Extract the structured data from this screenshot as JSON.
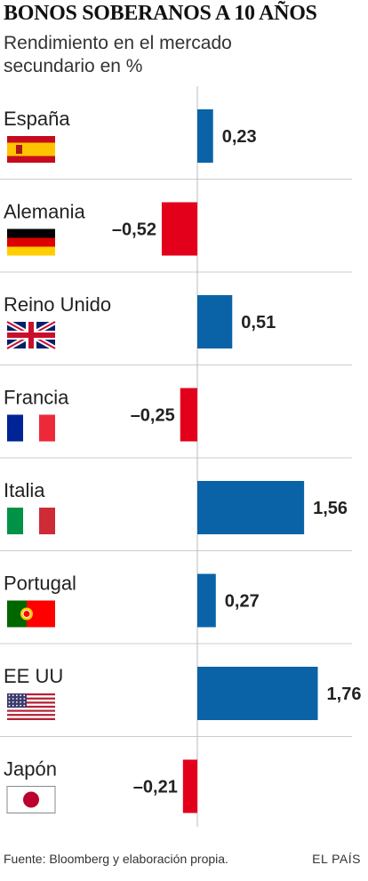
{
  "header": {
    "title": "BONOS SOBERANOS A 10 AÑOS",
    "subtitle": "Rendimiento en el mercado secundario en %"
  },
  "footer": {
    "source": "Fuente: Bloomberg y elaboración propia.",
    "brand": "EL PAÍS"
  },
  "colors": {
    "positive": "#0a63a6",
    "negative": "#e3001b",
    "separator": "#cccccc"
  },
  "chart_data": {
    "type": "bar",
    "orientation": "horizontal",
    "title": "BONOS SOBERANOS A 10 AÑOS",
    "subtitle": "Rendimiento en el mercado secundario en %",
    "categories": [
      "España",
      "Alemania",
      "Reino Unido",
      "Francia",
      "Italia",
      "Portugal",
      "EE UU",
      "Japón"
    ],
    "values": [
      0.23,
      -0.52,
      0.51,
      -0.25,
      1.56,
      0.27,
      1.76,
      -0.21
    ],
    "value_labels": [
      "0,23",
      "–0,52",
      "0,51",
      "–0,25",
      "1,56",
      "0,27",
      "1,76",
      "–0,21"
    ],
    "flags": [
      "spain-flag",
      "germany-flag",
      "uk-flag",
      "france-flag",
      "italy-flag",
      "portugal-flag",
      "usa-flag",
      "japan-flag"
    ],
    "xlim": [
      -0.6,
      1.8
    ],
    "grid": false,
    "legend": "none"
  }
}
